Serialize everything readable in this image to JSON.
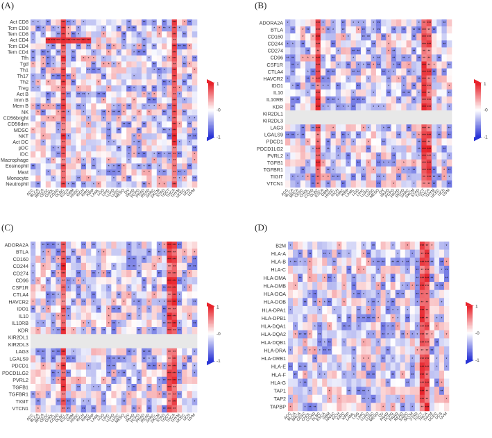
{
  "panels": [
    {
      "letter": "(A)",
      "rows": [
        "Act CD8",
        "Tcm CD8",
        "Tem CD8",
        "Act CD4",
        "Tcm CD4",
        "Tem CD4",
        "Tfh",
        "Tgd",
        "Th1",
        "Th17",
        "Th2",
        "Treg",
        "Act B",
        "Imm B",
        "Mem B",
        "NK",
        "CD56bright",
        "CD56dim",
        "MDSC",
        "NKT",
        "Act DC",
        "pDC",
        "iDC",
        "Macrophage",
        "Eosinophil",
        "Mast",
        "Monocyte",
        "Neutrophil"
      ]
    },
    {
      "letter": "(B)",
      "rows": [
        "ADORA2A",
        "BTLA",
        "CD160",
        "CD244",
        "CD274",
        "CD96",
        "CSF1R",
        "CTLA4",
        "HAVCR2",
        "IDO1",
        "IL10",
        "IL10RB",
        "KDR",
        "KIR2DL1",
        "KIR2DL3",
        "LAG3",
        "LGALS9",
        "PDCD1",
        "PDCD1LG2",
        "PVRL2",
        "TGFB1",
        "TGFBR1",
        "TIGIT",
        "VTCN1"
      ],
      "grey_rows": [
        "KIR2DL1",
        "KIR2DL3"
      ]
    },
    {
      "letter": "(C)",
      "rows": [
        "ADORA2A",
        "BTLA",
        "CD160",
        "CD244",
        "CD274",
        "CD96",
        "CSF1R",
        "CTLA4",
        "HAVCR2",
        "IDO1",
        "IL10",
        "IL10RB",
        "KDR",
        "KIR2DL1",
        "KIR2DL3",
        "LAG3",
        "LGALS9",
        "PDCD1",
        "PDCD1LG2",
        "PVRL2",
        "TGFB1",
        "TGFBR1",
        "TIGIT",
        "VTCN1"
      ],
      "grey_rows": [
        "KIR2DL1",
        "KIR2DL3"
      ]
    },
    {
      "letter": "(D)",
      "rows": [
        "B2M",
        "HLA-A",
        "HLA-B",
        "HLA-C",
        "HLA-DMA",
        "HLA-DMB",
        "HLA-DOA",
        "HLA-DOB",
        "HLA-DPA1",
        "HLA-DPB1",
        "HLA-DQA1",
        "HLA-DQA2",
        "HLA-DQB1",
        "HLA-DRA",
        "HLA-DRB1",
        "HLA-E",
        "HLA-F",
        "HLA-G",
        "TAP1",
        "TAP2",
        "TAPBP"
      ]
    }
  ],
  "columns": [
    "ACC",
    "BLCA",
    "BRCA",
    "CESC",
    "CHOL",
    "COAD",
    "DLBC",
    "ESCA",
    "GBM",
    "HNSC",
    "KICH",
    "KIRC",
    "KIRP",
    "LAML",
    "LGG",
    "LIHC",
    "LUAD",
    "LUSC",
    "MESO",
    "OV",
    "PAAD",
    "PCPG",
    "PRAD",
    "READ",
    "SARC",
    "SKCM",
    "STAD",
    "TGCT",
    "THCA",
    "THYM",
    "UCEC",
    "UCS",
    "UVM"
  ],
  "legend": {
    "max_label": "1",
    "mid_label": "-0",
    "min_label": "-1"
  },
  "colors": {
    "positive": "#e8232b",
    "negative": "#2a35d6",
    "neutral": "#ffffff",
    "na": "#e8e8e8"
  },
  "chart_data": {
    "type": "heatmap",
    "value_range": [
      -1,
      1
    ],
    "note": "Correlation heatmaps (4 panels) across TCGA cancer types; cell values estimated visually."
  }
}
